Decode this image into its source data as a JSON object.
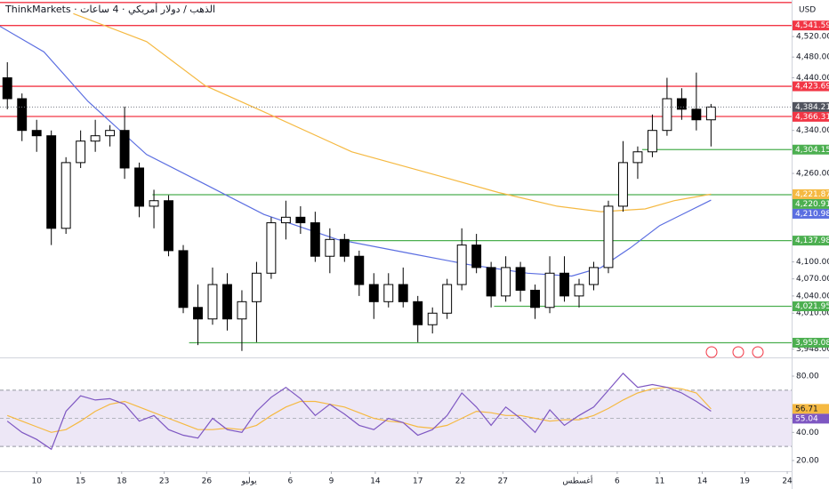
{
  "chart_data": [
    {
      "type": "candlestick",
      "title": "ThinkMarkets · الذهب / دولار أمريكي · 4 ساعات",
      "currency": "USD",
      "log_scale": true,
      "grid": false,
      "up_color": "#ffffff",
      "down_color": "#000000",
      "xlim": [
        0,
        54
      ],
      "ylim": [
        3937,
        4592
      ],
      "yticks": [
        {
          "value": 4520,
          "label": "4,520.00"
        },
        {
          "value": 4480,
          "label": "4,480.00"
        },
        {
          "value": 4440,
          "label": "4,440.00"
        },
        {
          "value": 4340,
          "label": "4,340.00"
        },
        {
          "value": 4260,
          "label": "4,260.00"
        },
        {
          "value": 4100,
          "label": "4,100.00"
        },
        {
          "value": 4070,
          "label": "4,070.00"
        },
        {
          "value": 4040,
          "label": "4,040.00"
        },
        {
          "value": 4010,
          "label": "4,010.00"
        },
        {
          "value": 3948,
          "label": "3,948.00"
        }
      ],
      "xticks": [
        {
          "value": 2.5,
          "label": "10"
        },
        {
          "value": 5.5,
          "label": "15"
        },
        {
          "value": 8.3,
          "label": "18"
        },
        {
          "value": 11.2,
          "label": "23"
        },
        {
          "value": 14.1,
          "label": "26"
        },
        {
          "value": 17,
          "label": "يوليو"
        },
        {
          "value": 19.8,
          "label": "6"
        },
        {
          "value": 22.6,
          "label": "9"
        },
        {
          "value": 25.6,
          "label": "14"
        },
        {
          "value": 28.5,
          "label": "17"
        },
        {
          "value": 31.4,
          "label": "22"
        },
        {
          "value": 34.3,
          "label": "27"
        },
        {
          "value": 39.4,
          "label": "أغسطس"
        },
        {
          "value": 42.1,
          "label": "6"
        },
        {
          "value": 45,
          "label": "11"
        },
        {
          "value": 47.9,
          "label": "14"
        },
        {
          "value": 50.8,
          "label": "19"
        },
        {
          "value": 53.7,
          "label": "24"
        }
      ],
      "ohlc": [
        [
          4440,
          4470,
          4380,
          4400
        ],
        [
          4400,
          4410,
          4320,
          4340
        ],
        [
          4340,
          4360,
          4300,
          4330
        ],
        [
          4330,
          4340,
          4130,
          4160
        ],
        [
          4160,
          4290,
          4150,
          4280
        ],
        [
          4280,
          4340,
          4270,
          4320
        ],
        [
          4320,
          4360,
          4300,
          4330
        ],
        [
          4330,
          4350,
          4310,
          4340
        ],
        [
          4340,
          4385,
          4250,
          4270
        ],
        [
          4270,
          4280,
          4180,
          4200
        ],
        [
          4200,
          4230,
          4160,
          4210
        ],
        [
          4210,
          4220,
          4110,
          4120
        ],
        [
          4120,
          4130,
          4010,
          4020
        ],
        [
          4020,
          4060,
          3955,
          4000
        ],
        [
          4000,
          4090,
          3990,
          4060
        ],
        [
          4060,
          4080,
          3980,
          4000
        ],
        [
          4000,
          4050,
          3945,
          4030
        ],
        [
          4030,
          4100,
          3960,
          4080
        ],
        [
          4080,
          4180,
          4070,
          4170
        ],
        [
          4170,
          4210,
          4140,
          4180
        ],
        [
          4180,
          4200,
          4150,
          4170
        ],
        [
          4170,
          4190,
          4100,
          4110
        ],
        [
          4110,
          4160,
          4080,
          4140
        ],
        [
          4140,
          4150,
          4100,
          4110
        ],
        [
          4110,
          4120,
          4040,
          4060
        ],
        [
          4060,
          4080,
          4000,
          4030
        ],
        [
          4030,
          4080,
          4020,
          4060
        ],
        [
          4060,
          4090,
          4020,
          4030
        ],
        [
          4030,
          4040,
          3960,
          3990
        ],
        [
          3990,
          4020,
          3975,
          4010
        ],
        [
          4010,
          4070,
          4000,
          4060
        ],
        [
          4060,
          4160,
          4050,
          4130
        ],
        [
          4130,
          4150,
          4080,
          4090
        ],
        [
          4090,
          4100,
          4020,
          4040
        ],
        [
          4040,
          4110,
          4030,
          4090
        ],
        [
          4090,
          4100,
          4030,
          4050
        ],
        [
          4050,
          4060,
          4000,
          4020
        ],
        [
          4020,
          4110,
          4010,
          4080
        ],
        [
          4080,
          4110,
          4030,
          4040
        ],
        [
          4040,
          4070,
          4020,
          4060
        ],
        [
          4060,
          4100,
          4050,
          4090
        ],
        [
          4090,
          4210,
          4080,
          4200
        ],
        [
          4200,
          4320,
          4190,
          4280
        ],
        [
          4280,
          4310,
          4250,
          4300
        ],
        [
          4300,
          4370,
          4290,
          4340
        ],
        [
          4340,
          4440,
          4330,
          4400
        ],
        [
          4400,
          4420,
          4360,
          4380
        ],
        [
          4380,
          4450,
          4340,
          4360
        ],
        [
          4360,
          4390,
          4310,
          4384.21
        ]
      ],
      "close_label": "4,384.21",
      "series": [
        {
          "color": "#f5b942",
          "x": [
            5,
            10,
            14,
            18,
            24,
            30,
            34,
            38,
            41,
            44,
            46,
            48.5
          ],
          "values": [
            4565,
            4510,
            4425,
            4375,
            4300,
            4255,
            4225,
            4200,
            4190,
            4195,
            4210,
            4221.87
          ],
          "last_label": "4,221.87"
        },
        {
          "color": "#5b6ee1",
          "x": [
            0,
            3,
            6,
            10,
            14,
            18,
            23,
            28,
            32,
            36,
            39,
            41,
            43,
            45,
            48.5
          ],
          "values": [
            4540,
            4490,
            4395,
            4295,
            4240,
            4185,
            4140,
            4115,
            4095,
            4080,
            4075,
            4090,
            4125,
            4165,
            4210.98
          ],
          "last_label": "4,210.98"
        }
      ],
      "levels": [
        {
          "value": 4587,
          "color": "#f23645",
          "from": 0
        },
        {
          "value": 4541.59,
          "label": "4,541.59",
          "color": "#f23645",
          "from": 0
        },
        {
          "value": 4423.69,
          "label": "4,423.69",
          "color": "#f23645",
          "from": 0
        },
        {
          "value": 4366.31,
          "label": "4,366.31",
          "color": "#f23645",
          "from": 0
        },
        {
          "value": 4304.15,
          "label": "4,304.15",
          "color": "#4caf50",
          "from": 43.8
        },
        {
          "value": 4220.91,
          "label": "4,220.91",
          "color": "#4caf50",
          "from": 10.4
        },
        {
          "value": 4137.98,
          "label": "4,137.98",
          "color": "#4caf50",
          "from": 23.4
        },
        {
          "value": 4021.95,
          "label": "4,021.95",
          "color": "#4caf50",
          "from": 33.7
        },
        {
          "value": 3959.08,
          "label": "3,959.08",
          "color": "#4caf50",
          "from": 12.9
        }
      ]
    },
    {
      "type": "line",
      "ylim": [
        12.4,
        91.4
      ],
      "yticks": [
        {
          "value": 80,
          "label": "80.00"
        },
        {
          "value": 40,
          "label": "40.00"
        },
        {
          "value": 20,
          "label": "20.00"
        }
      ],
      "band": [
        30,
        70
      ],
      "band_color": "#ede7f6",
      "midline": 50,
      "series": [
        {
          "color": "#f5b942",
          "values": [
            52,
            48,
            44,
            40,
            42,
            48,
            55,
            60,
            62,
            58,
            54,
            50,
            46,
            42,
            42,
            43,
            42,
            45,
            52,
            58,
            62,
            62,
            60,
            58,
            54,
            50,
            48,
            47,
            44,
            43,
            45,
            50,
            55,
            54,
            52,
            52,
            50,
            48,
            49,
            49,
            52,
            57,
            63,
            68,
            71,
            72,
            71,
            68,
            56.71
          ]
        },
        {
          "color": "#7e57c2",
          "values": [
            48,
            40,
            35,
            28,
            55,
            66,
            63,
            64,
            60,
            48,
            52,
            42,
            38,
            36,
            50,
            42,
            40,
            55,
            65,
            72,
            64,
            52,
            60,
            53,
            45,
            42,
            50,
            47,
            38,
            42,
            52,
            68,
            58,
            45,
            58,
            50,
            40,
            56,
            45,
            52,
            58,
            70,
            82,
            72,
            74,
            72,
            68,
            62,
            55.04
          ]
        }
      ]
    }
  ]
}
